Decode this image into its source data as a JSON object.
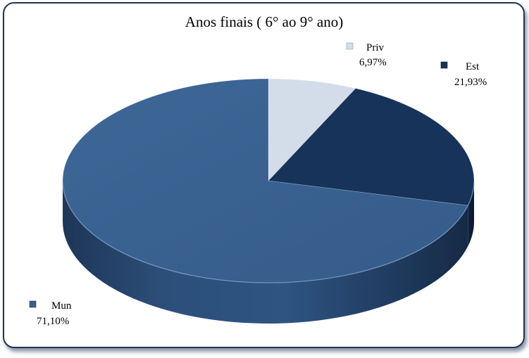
{
  "chart_data": {
    "type": "pie",
    "title": "Anos finais ( 6° ao 9° ano)",
    "slices": [
      {
        "name": "Priv",
        "value": 6.97,
        "label": "6,97%",
        "color": "#d3ddea"
      },
      {
        "name": "Est",
        "value": 21.93,
        "label": "21,93%",
        "color": "#17335a"
      },
      {
        "name": "Mun",
        "value": 71.1,
        "label": "71,10%",
        "color": "#38608f"
      }
    ],
    "style": "3d",
    "legend": "labels next to slices with square markers"
  }
}
